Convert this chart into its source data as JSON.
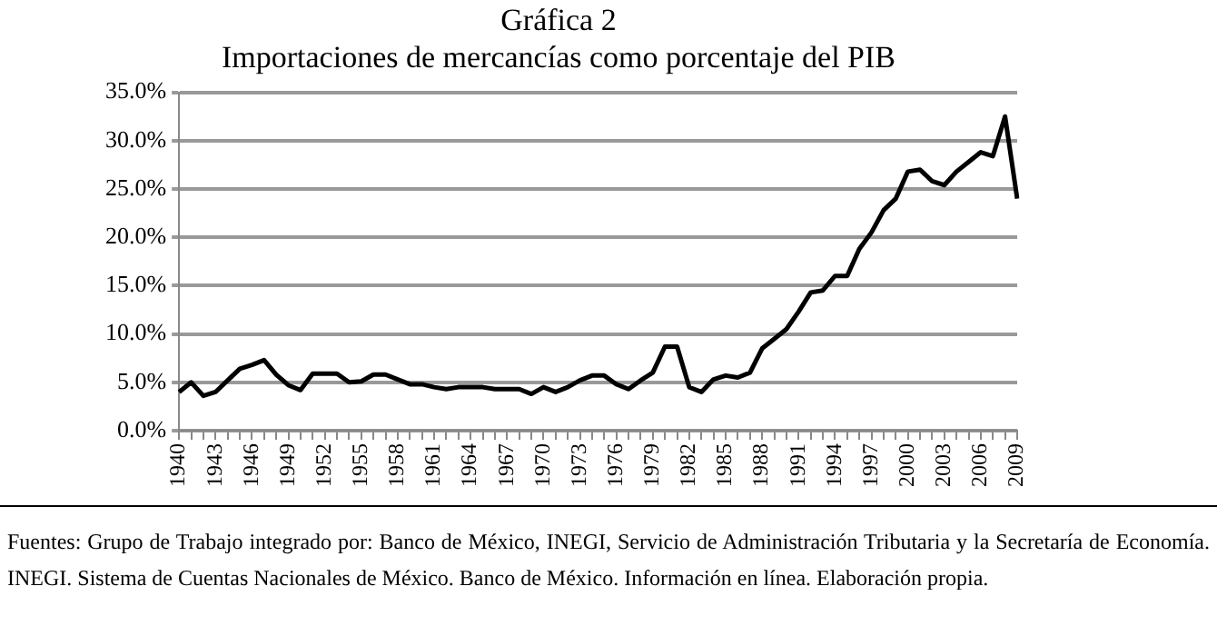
{
  "chart_data": {
    "type": "line",
    "title": "Gráfica 2",
    "subtitle": "Importaciones de mercancías como porcentaje del PIB",
    "categories": [
      "1940",
      null,
      null,
      "1943",
      null,
      null,
      "1946",
      null,
      null,
      "1949",
      null,
      null,
      "1952",
      null,
      null,
      "1955",
      null,
      null,
      "1958",
      null,
      null,
      "1961",
      null,
      null,
      "1964",
      null,
      null,
      "1967",
      null,
      null,
      "1970",
      null,
      null,
      "1973",
      null,
      null,
      "1976",
      null,
      null,
      "1979",
      null,
      null,
      "1982",
      null,
      null,
      "1985",
      null,
      null,
      "1988",
      null,
      null,
      "1991",
      null,
      null,
      "1994",
      null,
      null,
      "1997",
      null,
      null,
      "2000",
      null,
      null,
      "2003",
      null,
      null,
      "2006",
      null,
      null,
      "2009"
    ],
    "series": [
      {
        "color": "#000000",
        "values": [
          4.0,
          5.0,
          3.6,
          4.0,
          5.2,
          6.4,
          6.8,
          7.3,
          5.8,
          4.7,
          4.2,
          5.9,
          5.9,
          5.9,
          5.0,
          5.1,
          5.8,
          5.8,
          5.3,
          4.8,
          4.8,
          4.5,
          4.3,
          4.5,
          4.5,
          4.5,
          4.3,
          4.3,
          4.3,
          3.8,
          4.5,
          4.0,
          4.5,
          5.2,
          5.7,
          5.7,
          4.8,
          4.3,
          5.2,
          6.0,
          8.7,
          8.7,
          4.5,
          4.0,
          5.3,
          5.7,
          5.5,
          6.0,
          8.5,
          9.5,
          10.5,
          12.3,
          14.3,
          14.5,
          16.0,
          16.0,
          18.8,
          20.5,
          22.8,
          24.0,
          26.8,
          27.0,
          25.8,
          25.4,
          26.8,
          27.8,
          28.8,
          28.4,
          32.5,
          24.0
        ]
      }
    ],
    "ylim": [
      0,
      35
    ],
    "yticks": [
      {
        "value": 0,
        "label": "0.0%"
      },
      {
        "value": 5,
        "label": "5.0%"
      },
      {
        "value": 10,
        "label": "10.0%"
      },
      {
        "value": 15,
        "label": "15.0%"
      },
      {
        "value": 20,
        "label": "20.0%"
      },
      {
        "value": 25,
        "label": "25.0%"
      },
      {
        "value": 30,
        "label": "30.0%"
      },
      {
        "value": 35,
        "label": "35.0%"
      }
    ],
    "grid": "y",
    "legend": false,
    "marker": "none",
    "line_style": "solid",
    "annotations": [
      "Fuentes: Grupo de Trabajo integrado por: Banco de México, INEGI, Servicio de Administración Tributaria y la Secretaría de Economía. INEGI. Sistema de Cuentas Nacionales de México. Banco de México. Información en línea. Elaboración propia."
    ]
  }
}
